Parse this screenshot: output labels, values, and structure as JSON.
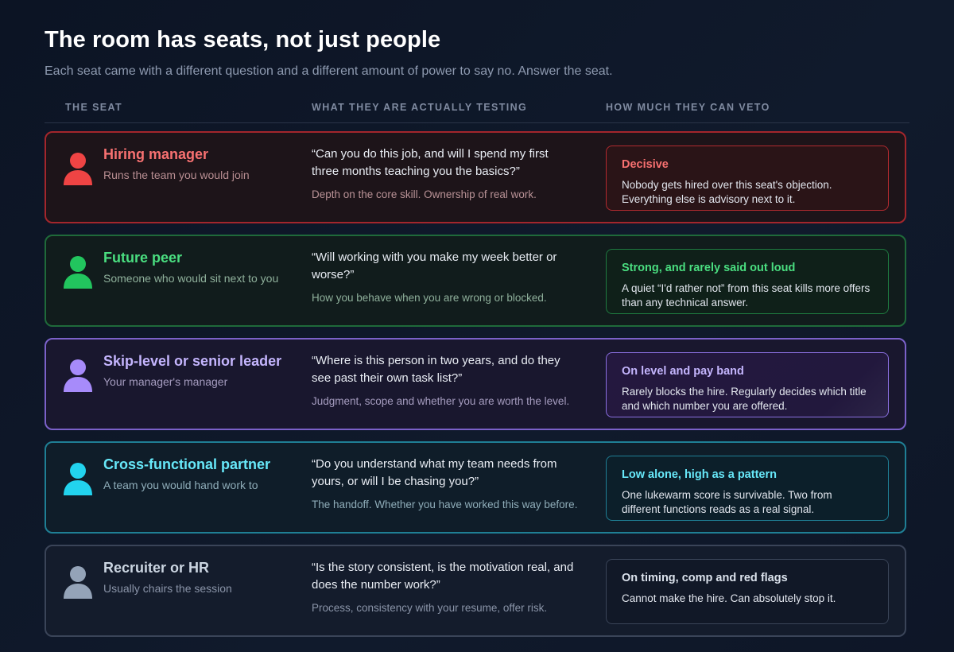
{
  "header": {
    "title": "The room has seats, not just people",
    "subtitle": "Each seat came with a different question and a different amount of power to say no. Answer the seat."
  },
  "columns": {
    "seat": "THE SEAT",
    "testing": "WHAT THEY ARE ACTUALLY TESTING",
    "veto": "HOW MUCH THEY CAN VETO"
  },
  "rows": [
    {
      "name": "Hiring manager",
      "sub": "Runs the team you would join",
      "quote": "“Can you do this job, and will I spend my first three months teaching you the basics?”",
      "test": "Depth on the core skill. Ownership of real work.",
      "veto_title": "Decisive",
      "veto_text": "Nobody gets hired over this seat's objection. Everything else is advisory next to it.",
      "icon": "person-icon",
      "accent": "#ef4444"
    },
    {
      "name": "Future peer",
      "sub": "Someone who would sit next to you",
      "quote": "“Will working with you make my week better or worse?”",
      "test": "How you behave when you are wrong or blocked.",
      "veto_title": "Strong, and rarely said out loud",
      "veto_text": "A quiet “I'd rather not” from this seat kills more offers than any technical answer.",
      "icon": "person-icon",
      "accent": "#22c55e"
    },
    {
      "name": "Skip-level or senior leader",
      "sub": "Your manager's manager",
      "quote": "“Where is this person in two years, and do they see past their own task list?”",
      "test": "Judgment, scope and whether you are worth the level.",
      "veto_title": "On level and pay band",
      "veto_text": "Rarely blocks the hire. Regularly decides which title and which number you are offered.",
      "icon": "person-icon",
      "accent": "#a78bfa"
    },
    {
      "name": "Cross-functional partner",
      "sub": "A team you would hand work to",
      "quote": "“Do you understand what my team needs from yours, or will I be chasing you?”",
      "test": "The handoff. Whether you have worked this way before.",
      "veto_title": "Low alone, high as a pattern",
      "veto_text": "One lukewarm score is survivable. Two from different functions reads as a real signal.",
      "icon": "person-icon",
      "accent": "#22d3ee"
    },
    {
      "name": "Recruiter or HR",
      "sub": "Usually chairs the session",
      "quote": "“Is the story consistent, is the motivation real, and does the number work?”",
      "test": "Process, consistency with your resume, offer risk.",
      "veto_title": "On timing, comp and red flags",
      "veto_text": "Cannot make the hire. Can absolutely stop it.",
      "icon": "person-icon",
      "accent": "#94a3b8"
    }
  ]
}
